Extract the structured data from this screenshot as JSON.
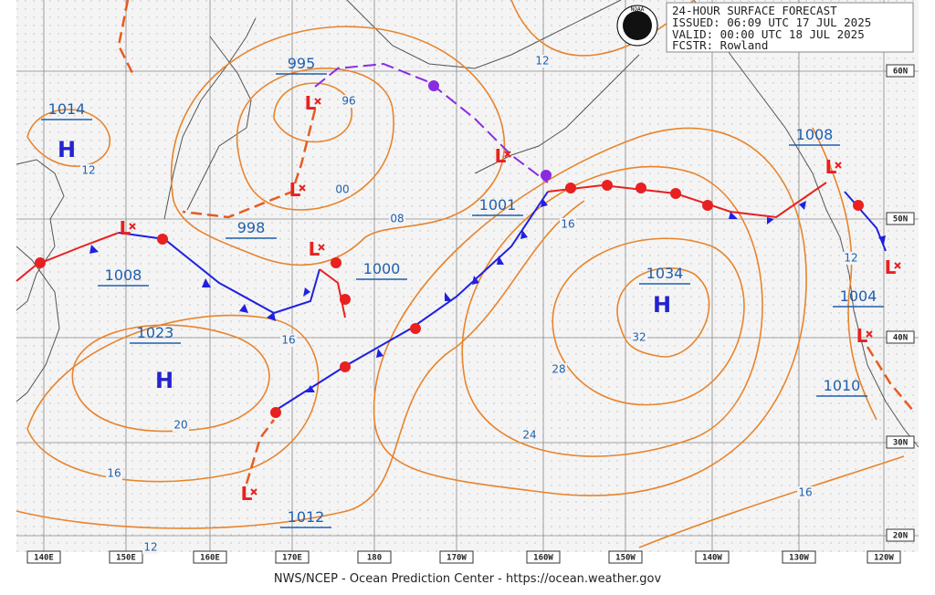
{
  "header": {
    "title": "24-HOUR SURFACE FORECAST",
    "issued": "ISSUED: 06:09 UTC 17 JUL 2025",
    "valid": "VALID:  00:00 UTC 18 JUL 2025",
    "forecaster": "FCSTR:  Rowland"
  },
  "logo": "NOAA",
  "symbols": {
    "high": "H",
    "low": "L"
  },
  "pressure_centers": [
    "1014",
    "995",
    "998",
    "1008",
    "1023",
    "1000",
    "1001",
    "1034",
    "1008",
    "1004",
    "1010",
    "1012"
  ],
  "isobar_labels": [
    "96",
    "12",
    "00",
    "08",
    "16",
    "12",
    "12",
    "16",
    "32",
    "28",
    "20",
    "24",
    "16",
    "16",
    "12"
  ],
  "lat_labels": [
    "60N",
    "50N",
    "40N",
    "30N",
    "20N"
  ],
  "lon_labels": [
    "140E",
    "150E",
    "160E",
    "170E",
    "180",
    "170W",
    "160W",
    "150W",
    "140W",
    "130W",
    "120W"
  ],
  "footer": "NWS/NCEP - Ocean Prediction Center - https://ocean.weather.gov"
}
